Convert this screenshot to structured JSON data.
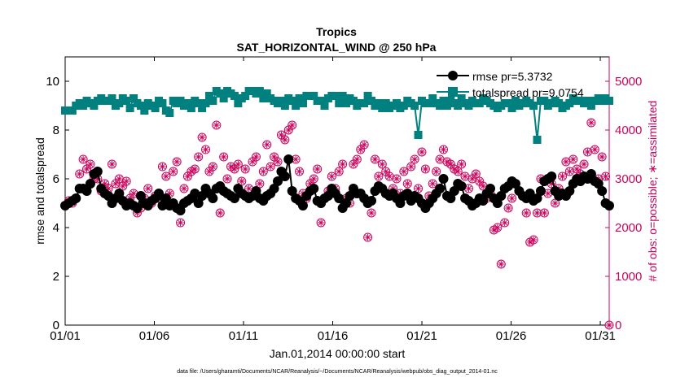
{
  "chart_data": {
    "type": "line",
    "title": "Tropics",
    "subtitle": "SAT_HORIZONTAL_WIND @ 250 hPa",
    "xlabel": "Jan.01,2014 00:00:00 start",
    "ylabel_left": "rmse and totalspread",
    "ylabel_right": "# of obs: o=possible; ∗=assimilated",
    "footnote": "data file: /Users/gharamti/Documents/NCAR/Reanalysis/~/Documents/NCAR/Reanalysis/webpub/obs_diag_output_2014-01.nc",
    "x_range_days": [
      0,
      30.5
    ],
    "x_ticks": [
      {
        "day": 0,
        "label": "01/01"
      },
      {
        "day": 5,
        "label": "01/06"
      },
      {
        "day": 10,
        "label": "01/11"
      },
      {
        "day": 15,
        "label": "01/16"
      },
      {
        "day": 20,
        "label": "01/21"
      },
      {
        "day": 25,
        "label": "01/26"
      },
      {
        "day": 30,
        "label": "01/31"
      }
    ],
    "ylim_left": [
      0,
      11
    ],
    "y_ticks_left": [
      0,
      2,
      4,
      6,
      8,
      10
    ],
    "ylim_right": [
      0,
      5500
    ],
    "y_ticks_right": [
      0,
      1000,
      2000,
      3000,
      4000,
      5000
    ],
    "colors": {
      "rmse": "#000000",
      "totalspread": "#00807f",
      "obs": "#c8045c",
      "axis": "#000000"
    },
    "legend": {
      "position": "top-right",
      "entries": [
        "rmse pr=5.3732",
        "totalspread pr=9.0754"
      ]
    },
    "series": [
      {
        "name": "rmse",
        "axis": "left",
        "marker": "circle",
        "values": [
          4.9,
          5.0,
          5.1,
          5.2,
          5.6,
          5.6,
          5.5,
          5.8,
          6.2,
          6.3,
          5.6,
          5.4,
          5.3,
          5.0,
          5.2,
          5.4,
          5.1,
          4.9,
          5.0,
          4.9,
          4.8,
          5.3,
          5.0,
          4.9,
          5.1,
          5.2,
          5.4,
          4.9,
          5.2,
          4.9,
          5.0,
          4.8,
          4.7,
          5.0,
          5.1,
          5.2,
          5.4,
          5.0,
          5.3,
          5.6,
          5.4,
          5.2,
          5.6,
          5.7,
          5.5,
          5.4,
          5.3,
          5.2,
          5.6,
          5.4,
          5.3,
          5.2,
          5.3,
          5.5,
          5.2,
          5.1,
          5.3,
          5.4,
          5.6,
          5.9,
          6.3,
          6.1,
          6.8,
          5.5,
          5.2,
          5.1,
          4.9,
          5.3,
          5.5,
          5.6,
          5.1,
          5.0,
          5.2,
          5.3,
          5.6,
          5.4,
          5.2,
          4.8,
          5.0,
          5.3,
          5.6,
          5.4,
          5.4,
          5.2,
          5.0,
          5.1,
          5.5,
          5.7,
          5.6,
          5.4,
          5.3,
          5.4,
          5.2,
          5.0,
          5.3,
          5.4,
          5.1,
          5.3,
          5.2,
          5.0,
          4.8,
          5.0,
          5.2,
          5.4,
          5.6,
          6.0,
          5.3,
          5.2,
          5.5,
          5.8,
          5.7,
          5.2,
          5.1,
          4.9,
          5.0,
          5.2,
          5.1,
          5.4,
          5.6,
          5.2,
          5.0,
          5.3,
          5.6,
          5.7,
          5.9,
          5.8,
          5.5,
          5.3,
          5.2,
          5.4,
          5.1,
          5.2,
          5.5,
          5.9,
          6.0,
          6.1,
          5.5,
          5.3,
          5.4,
          5.3,
          5.5,
          5.8,
          6.0,
          5.9,
          6.1,
          6.0,
          6.2,
          5.9,
          5.8,
          5.5,
          5.0,
          4.9
        ]
      },
      {
        "name": "totalspread",
        "axis": "left",
        "marker": "square",
        "values": [
          8.8,
          8.8,
          8.8,
          9.0,
          9.1,
          9.0,
          9.2,
          9.1,
          9.0,
          9.2,
          9.3,
          9.2,
          9.2,
          9.3,
          9.0,
          9.1,
          9.3,
          9.2,
          8.9,
          9.3,
          9.1,
          9.0,
          8.8,
          9.1,
          9.0,
          8.9,
          9.2,
          9.1,
          8.8,
          8.7,
          9.2,
          9.1,
          9.2,
          9.0,
          9.1,
          8.9,
          9.2,
          9.1,
          8.9,
          9.1,
          9.4,
          9.2,
          9.6,
          9.5,
          9.3,
          9.6,
          9.5,
          9.4,
          9.1,
          9.3,
          9.4,
          9.6,
          9.6,
          9.5,
          9.6,
          9.3,
          9.5,
          9.3,
          9.2,
          9.1,
          9.2,
          9.0,
          9.3,
          9.2,
          9.0,
          9.3,
          9.1,
          9.4,
          9.4,
          9.4,
          9.2,
          9.2,
          9.0,
          9.3,
          9.4,
          9.4,
          9.1,
          9.4,
          9.1,
          9.3,
          9.2,
          9.0,
          9.1,
          9.1,
          9.4,
          9.2,
          9.0,
          9.1,
          8.9,
          9.1,
          8.9,
          9.0,
          9.1,
          8.9,
          9.0,
          9.2,
          9.1,
          9.0,
          7.8,
          9.2,
          9.1,
          9.1,
          9.3,
          9.1,
          9.0,
          9.2,
          9.0,
          9.2,
          9.1,
          9.0,
          9.3,
          9.1,
          9.0,
          9.2,
          9.1,
          9.1,
          9.3,
          9.2,
          9.1,
          9.0,
          8.9,
          9.0,
          9.1,
          9.1,
          8.9,
          9.2,
          9.0,
          9.1,
          9.2,
          9.1,
          9.0,
          7.6,
          9.2,
          9.2,
          9.0,
          9.1,
          9.2,
          9.1,
          8.9,
          9.0,
          9.1,
          9.3,
          9.2,
          9.2,
          9.1,
          9.2,
          9.0,
          9.2,
          9.3,
          9.2,
          9.3,
          9.2
        ]
      },
      {
        "name": "obs_possible_assimilated",
        "axis": "right",
        "marker": "circle-asterisk",
        "values": [
          2450,
          2550,
          2500,
          2600,
          3100,
          3400,
          3200,
          3300,
          3000,
          3000,
          2750,
          2900,
          2800,
          3300,
          2900,
          3000,
          2850,
          2950,
          2600,
          2700,
          2300,
          2400,
          2600,
          2800,
          2500,
          2650,
          2600,
          3250,
          3050,
          2700,
          3150,
          3350,
          2100,
          2800,
          3050,
          3150,
          3200,
          3450,
          3850,
          3600,
          3150,
          3250,
          4100,
          2300,
          3450,
          3000,
          3250,
          3200,
          3300,
          2950,
          3200,
          2800,
          3350,
          3450,
          2900,
          3150,
          3700,
          3250,
          3450,
          3350,
          3900,
          3800,
          4000,
          4100,
          3400,
          3150,
          2700,
          2600,
          2900,
          3000,
          3200,
          2100,
          2600,
          2750,
          3050,
          2800,
          3150,
          3300,
          2600,
          2500,
          3300,
          3400,
          3600,
          3700,
          1800,
          2300,
          3400,
          3050,
          3300,
          3150,
          3050,
          2800,
          3000,
          2700,
          3150,
          2900,
          3250,
          3400,
          2800,
          3550,
          3200,
          2650,
          2900,
          3150,
          3400,
          3600,
          3350,
          3300,
          3200,
          3150,
          3300,
          3050,
          2800,
          3000,
          3100,
          2950,
          2850,
          2600,
          2700,
          1950,
          2000,
          1250,
          2100,
          2400,
          2600,
          2900,
          2750,
          2650,
          2300,
          1700,
          1750,
          2300,
          3000,
          2300,
          2700,
          2900,
          2500,
          2800,
          3050,
          3350,
          3150,
          3400,
          3200,
          3100,
          3300,
          3550,
          4150,
          3600,
          3000,
          3450,
          3050,
          0
        ]
      }
    ]
  }
}
